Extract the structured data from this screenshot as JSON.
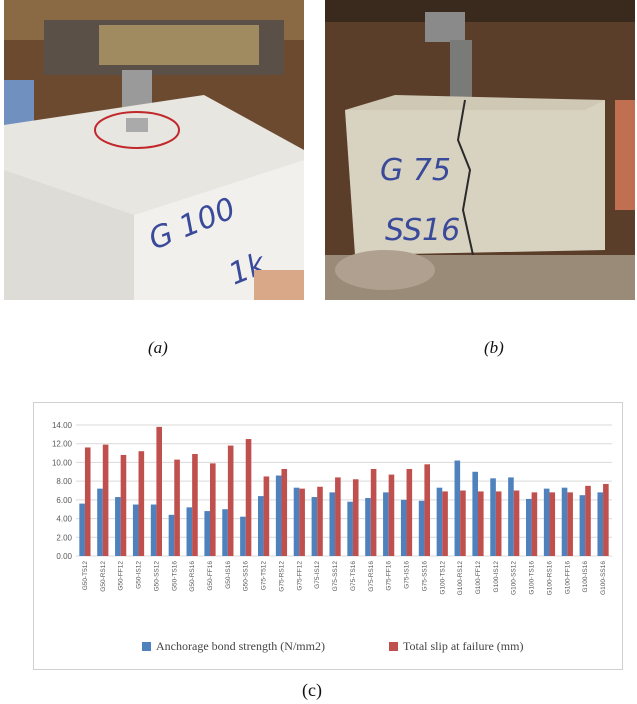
{
  "captions": {
    "a": "(a)",
    "b": "(b)",
    "c": "(c)"
  },
  "photos": {
    "a": {
      "marking": "G 100",
      "marking2": "1k"
    },
    "b": {
      "marking": "G 75",
      "marking2": "SS16"
    }
  },
  "colors": {
    "bond": "#4f81bd",
    "slip": "#c0504d",
    "grid": "#d9d9d9",
    "axis_text": "#595959"
  },
  "chart_data": {
    "type": "bar",
    "ylim": [
      0,
      14
    ],
    "yticks": [
      "0.00",
      "2.00",
      "4.00",
      "6.00",
      "8.00",
      "10.00",
      "12.00",
      "14.00"
    ],
    "categories": [
      "G50-T512",
      "G50-RS12",
      "G50-FF12",
      "G50-IS12",
      "G50-SS12",
      "G50-TS16",
      "G50-RS16",
      "G50-FF16",
      "G50-IS16",
      "G50-SS16",
      "G75-T512",
      "G75-RS12",
      "G75-FF12",
      "G75-IS12",
      "G75-SS12",
      "G75-TS16",
      "G75-RS16",
      "G75-FF16",
      "G75-IS16",
      "G75-SS16",
      "G100-TS12",
      "G100-RS12",
      "G100-FF12",
      "G100-IS12",
      "G100-SS12",
      "G100-TS16",
      "G100-RS16",
      "G100-FF16",
      "G100-IS16",
      "G100-SS16"
    ],
    "series": [
      {
        "name": "Anchorage bond strength (N/mm2)",
        "values": [
          5.6,
          7.2,
          6.3,
          5.5,
          5.5,
          4.4,
          5.2,
          4.8,
          5.0,
          4.2,
          6.4,
          8.6,
          7.3,
          6.3,
          6.8,
          5.8,
          6.2,
          6.8,
          6.0,
          5.9,
          7.3,
          10.2,
          9.0,
          8.3,
          8.4,
          6.1,
          7.2,
          7.3,
          6.5,
          6.8
        ]
      },
      {
        "name": "Total slip at failure (mm)",
        "values": [
          11.6,
          11.9,
          10.8,
          11.2,
          13.8,
          10.3,
          10.9,
          9.9,
          11.8,
          12.5,
          8.5,
          9.3,
          7.2,
          7.4,
          8.4,
          8.2,
          9.3,
          8.7,
          9.3,
          9.8,
          6.9,
          7.0,
          6.9,
          6.9,
          7.0,
          6.8,
          6.8,
          6.8,
          7.5,
          7.7
        ]
      }
    ],
    "grid": true,
    "legend_position": "bottom"
  }
}
